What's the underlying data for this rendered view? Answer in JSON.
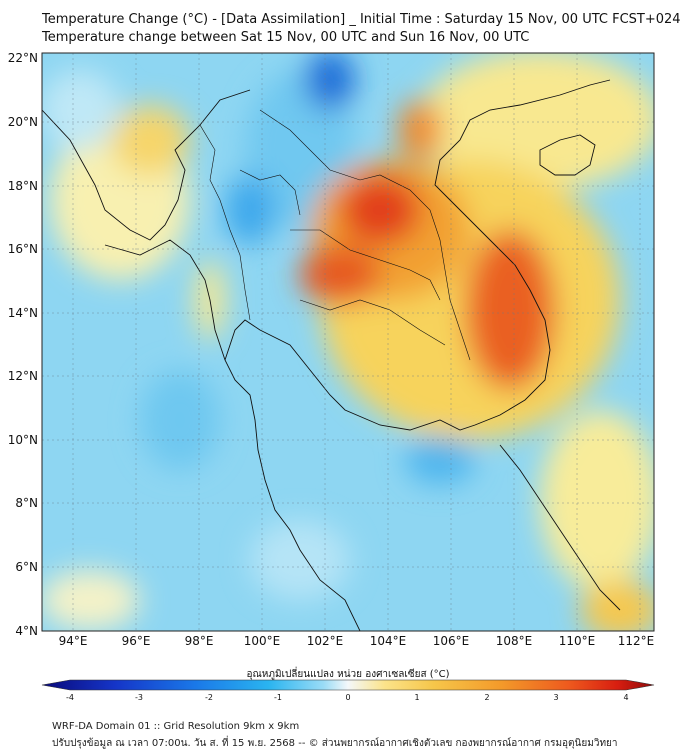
{
  "header": {
    "title_line1": "Temperature Change (°C) - [Data Assimilation] _ Initial Time : Saturday 15 Nov, 00 UTC FCST+024",
    "title_line2": "Temperature change between Sat 15 Nov, 00 UTC and Sun 16 Nov, 00 UTC"
  },
  "map": {
    "lat_labels": [
      "22°N",
      "20°N",
      "18°N",
      "16°N",
      "14°N",
      "12°N",
      "10°N",
      "8°N",
      "6°N",
      "4°N"
    ],
    "lon_labels": [
      "94°E",
      "96°E",
      "98°E",
      "100°E",
      "102°E",
      "104°E",
      "106°E",
      "108°E",
      "110°E",
      "112°E"
    ]
  },
  "colorbar": {
    "label": "อุณหภูมิเปลี่ยนแปลง หน่วย องศาเซลเซียส (°C)",
    "ticks": [
      "-4",
      "-3",
      "-2",
      "-1",
      "0",
      "1",
      "2",
      "3",
      "4"
    ],
    "colors": [
      "#0a0a7a",
      "#1535c8",
      "#1a78e8",
      "#2ab4f0",
      "#9adcf6",
      "#f4f8fa",
      "#fbe38a",
      "#f6c64a",
      "#f39a2a",
      "#ee5a1e",
      "#d81e10",
      "#8c0a0a"
    ]
  },
  "footer": {
    "line1": "WRF-DA Domain 01 :: Grid Resolution 9km x 9km",
    "line2": "ปรับปรุงข้อมูล ณ เวลา 07:00น. วัน ส. ที่ 15 พ.ย. 2568 -- © ส่วนพยากรณ์อากาศเชิงตัวเลข กองพยากรณ์อากาศ กรมอุตุนิยมวิทยา"
  }
}
